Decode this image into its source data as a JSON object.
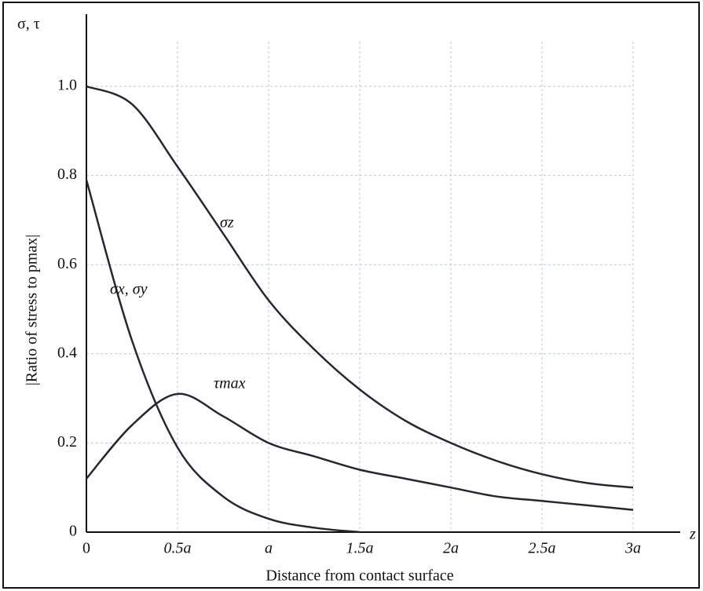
{
  "chart_data": {
    "type": "line",
    "y_axis_title": "σ, τ",
    "y_label": "|Ratio of stress to pmax|",
    "x_axis_title": "z",
    "x_label": "Distance from contact surface",
    "x": [
      0,
      0.25,
      0.5,
      0.75,
      1,
      1.25,
      1.5,
      1.75,
      2,
      2.25,
      2.5,
      2.75,
      3
    ],
    "series": [
      {
        "name": "σz",
        "color": "#2a2530",
        "values": [
          1.0,
          0.96,
          0.82,
          0.67,
          0.52,
          0.41,
          0.32,
          0.25,
          0.2,
          0.16,
          0.13,
          0.11,
          0.1
        ]
      },
      {
        "name": "σx, σy",
        "color": "#2a2530",
        "values": [
          0.79,
          0.43,
          0.19,
          0.08,
          0.03,
          0.01,
          0,
          null,
          null,
          null,
          null,
          null,
          null
        ]
      },
      {
        "name": "τmax",
        "color": "#2a2530",
        "values": [
          0.12,
          0.24,
          0.31,
          0.26,
          0.2,
          0.17,
          0.14,
          0.12,
          0.1,
          0.08,
          0.07,
          0.06,
          0.05
        ]
      }
    ],
    "xlim": [
      0,
      3
    ],
    "xticks": [
      0,
      {
        "value": 0.5,
        "label": "0.5a"
      },
      {
        "value": 1,
        "label": "a"
      },
      {
        "value": 1.5,
        "label": "1.5a"
      },
      {
        "value": 2,
        "label": "2a"
      },
      {
        "value": 2.5,
        "label": "2.5a"
      },
      {
        "value": 3,
        "label": "3a"
      }
    ],
    "ylim": [
      0,
      1.1
    ],
    "yticks": [
      0,
      0.2,
      0.4,
      0.6,
      0.8,
      {
        "value": 1,
        "label": "1.0"
      }
    ],
    "grid": true
  }
}
